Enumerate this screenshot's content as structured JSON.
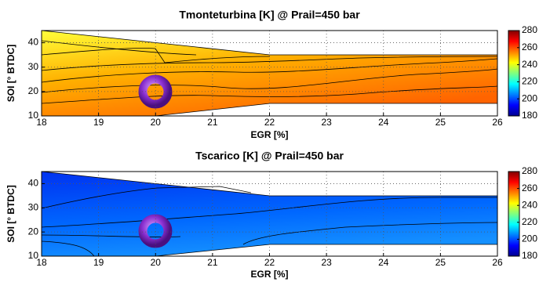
{
  "chart_data": [
    {
      "type": "contour",
      "title": "Tmonteturbina [K] @ Prail=450 bar",
      "xlabel": "EGR [%]",
      "ylabel": "SOI [° BTDC]",
      "xlim": [
        18,
        26
      ],
      "xticks": [
        18,
        19,
        20,
        21,
        22,
        23,
        24,
        25,
        26
      ],
      "ylim": [
        10,
        45
      ],
      "yticks": [
        10,
        20,
        30,
        40
      ],
      "clim": [
        180,
        280
      ],
      "cticks": [
        180,
        200,
        220,
        240,
        260,
        280
      ],
      "grid": true
    },
    {
      "type": "contour",
      "title": "Tscarico [K] @ Prail=450 bar",
      "xlabel": "EGR [%]",
      "ylabel": "SOI [° BTDC]",
      "xlim": [
        18,
        26
      ],
      "xticks": [
        18,
        19,
        20,
        21,
        22,
        23,
        24,
        25,
        26
      ],
      "ylim": [
        10,
        45
      ],
      "yticks": [
        10,
        20,
        30,
        40
      ],
      "clim": [
        180,
        280
      ],
      "cticks": [
        180,
        200,
        220,
        240,
        260,
        280
      ],
      "grid": true
    }
  ]
}
